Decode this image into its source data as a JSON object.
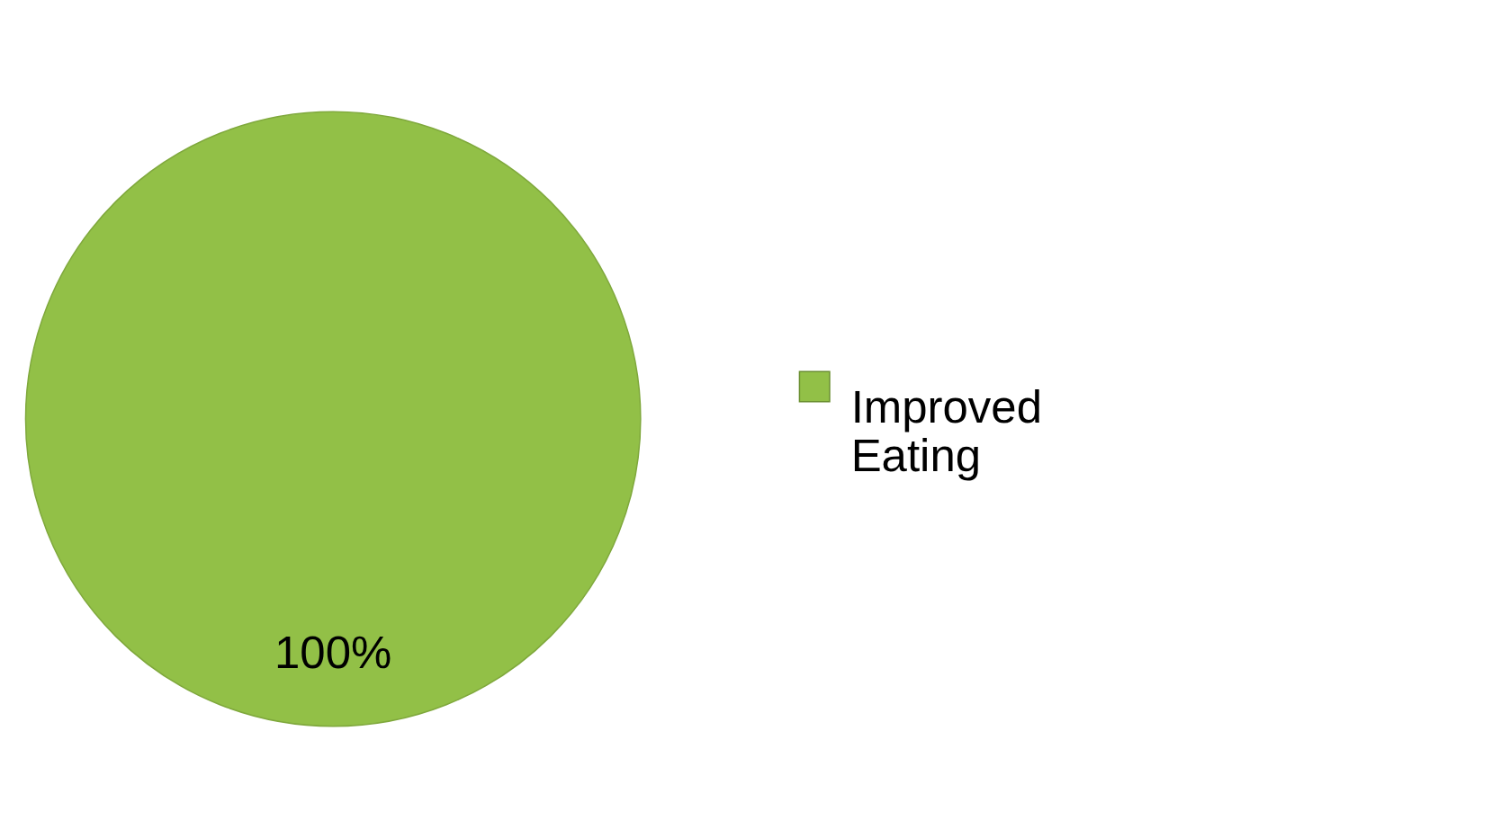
{
  "chart_data": {
    "type": "pie",
    "categories": [
      "Improved Eating"
    ],
    "values": [
      100
    ],
    "colors": [
      "#92c047"
    ],
    "value_labels": [
      "100%"
    ],
    "legend": "right"
  }
}
